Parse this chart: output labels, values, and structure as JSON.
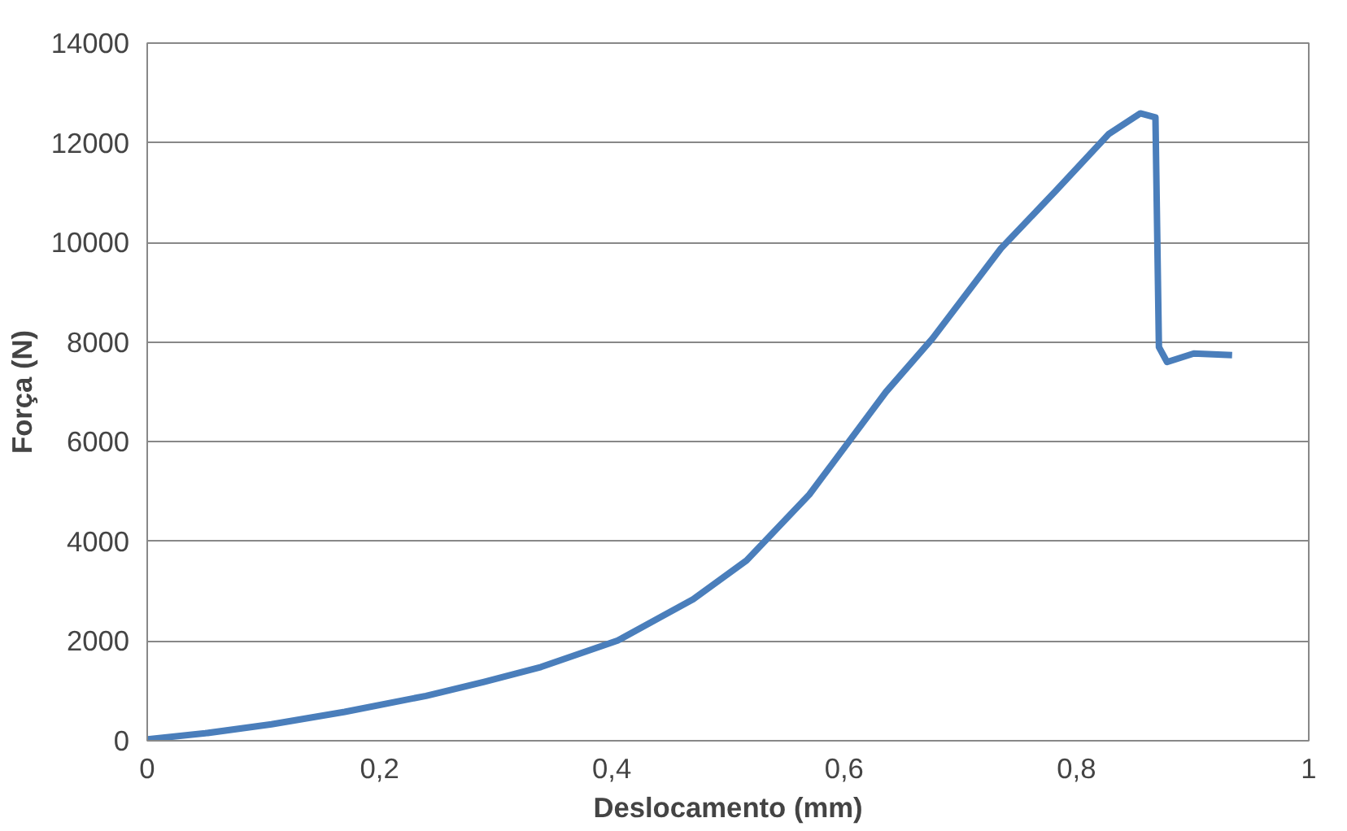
{
  "chart_data": {
    "type": "line",
    "xlabel": "Deslocamento (mm)",
    "ylabel": "Força (N)",
    "x": [
      0,
      0.05,
      0.107,
      0.17,
      0.24,
      0.29,
      0.339,
      0.405,
      0.47,
      0.516,
      0.57,
      0.636,
      0.676,
      0.735,
      0.782,
      0.828,
      0.855,
      0.868,
      0.871,
      0.878,
      0.901,
      0.934
    ],
    "series": [
      {
        "color": "#4a7ebb",
        "values": [
          30,
          150,
          330,
          580,
          900,
          1180,
          1480,
          2010,
          2840,
          3620,
          4940,
          7000,
          8070,
          9880,
          11030,
          12180,
          12590,
          12510,
          7900,
          7600,
          7770,
          7740
        ]
      }
    ],
    "xlim": [
      0,
      1
    ],
    "xticks": [
      0,
      {
        "value": 0.2,
        "label": "0,2"
      },
      {
        "value": 0.4,
        "label": "0,4"
      },
      {
        "value": 0.6,
        "label": "0,6"
      },
      {
        "value": 0.8,
        "label": "0,8"
      },
      1
    ],
    "ylim": [
      0,
      14000
    ],
    "yticks": [
      0,
      2000,
      4000,
      6000,
      8000,
      10000,
      12000,
      14000
    ],
    "grid": "y",
    "marker": "none",
    "line_style": "solid"
  }
}
